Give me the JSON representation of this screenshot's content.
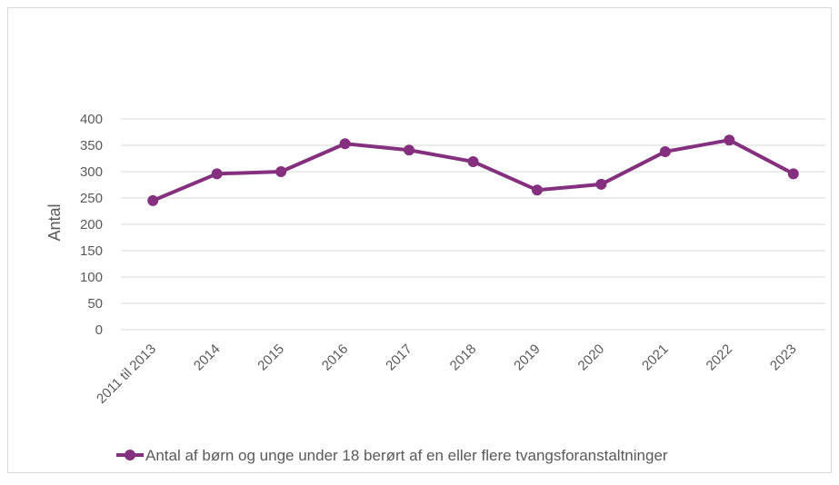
{
  "chart_data": {
    "type": "line",
    "y_label": "Antal",
    "categories": [
      "2011 til 2013",
      "2014",
      "2015",
      "2016",
      "2017",
      "2018",
      "2019",
      "2020",
      "2021",
      "2022",
      "2023"
    ],
    "series": [
      {
        "name": "Antal af børn og unge under 18 berørt af en eller flere tvangsforanstaltninger",
        "color": "#84307f",
        "values": [
          245,
          296,
          300,
          353,
          341,
          319,
          265,
          276,
          338,
          360,
          296
        ]
      }
    ],
    "ylim": [
      0,
      400
    ],
    "yticks": [
      0,
      50,
      100,
      150,
      200,
      250,
      300,
      350,
      400
    ],
    "grid": true,
    "legend": "bottom"
  }
}
